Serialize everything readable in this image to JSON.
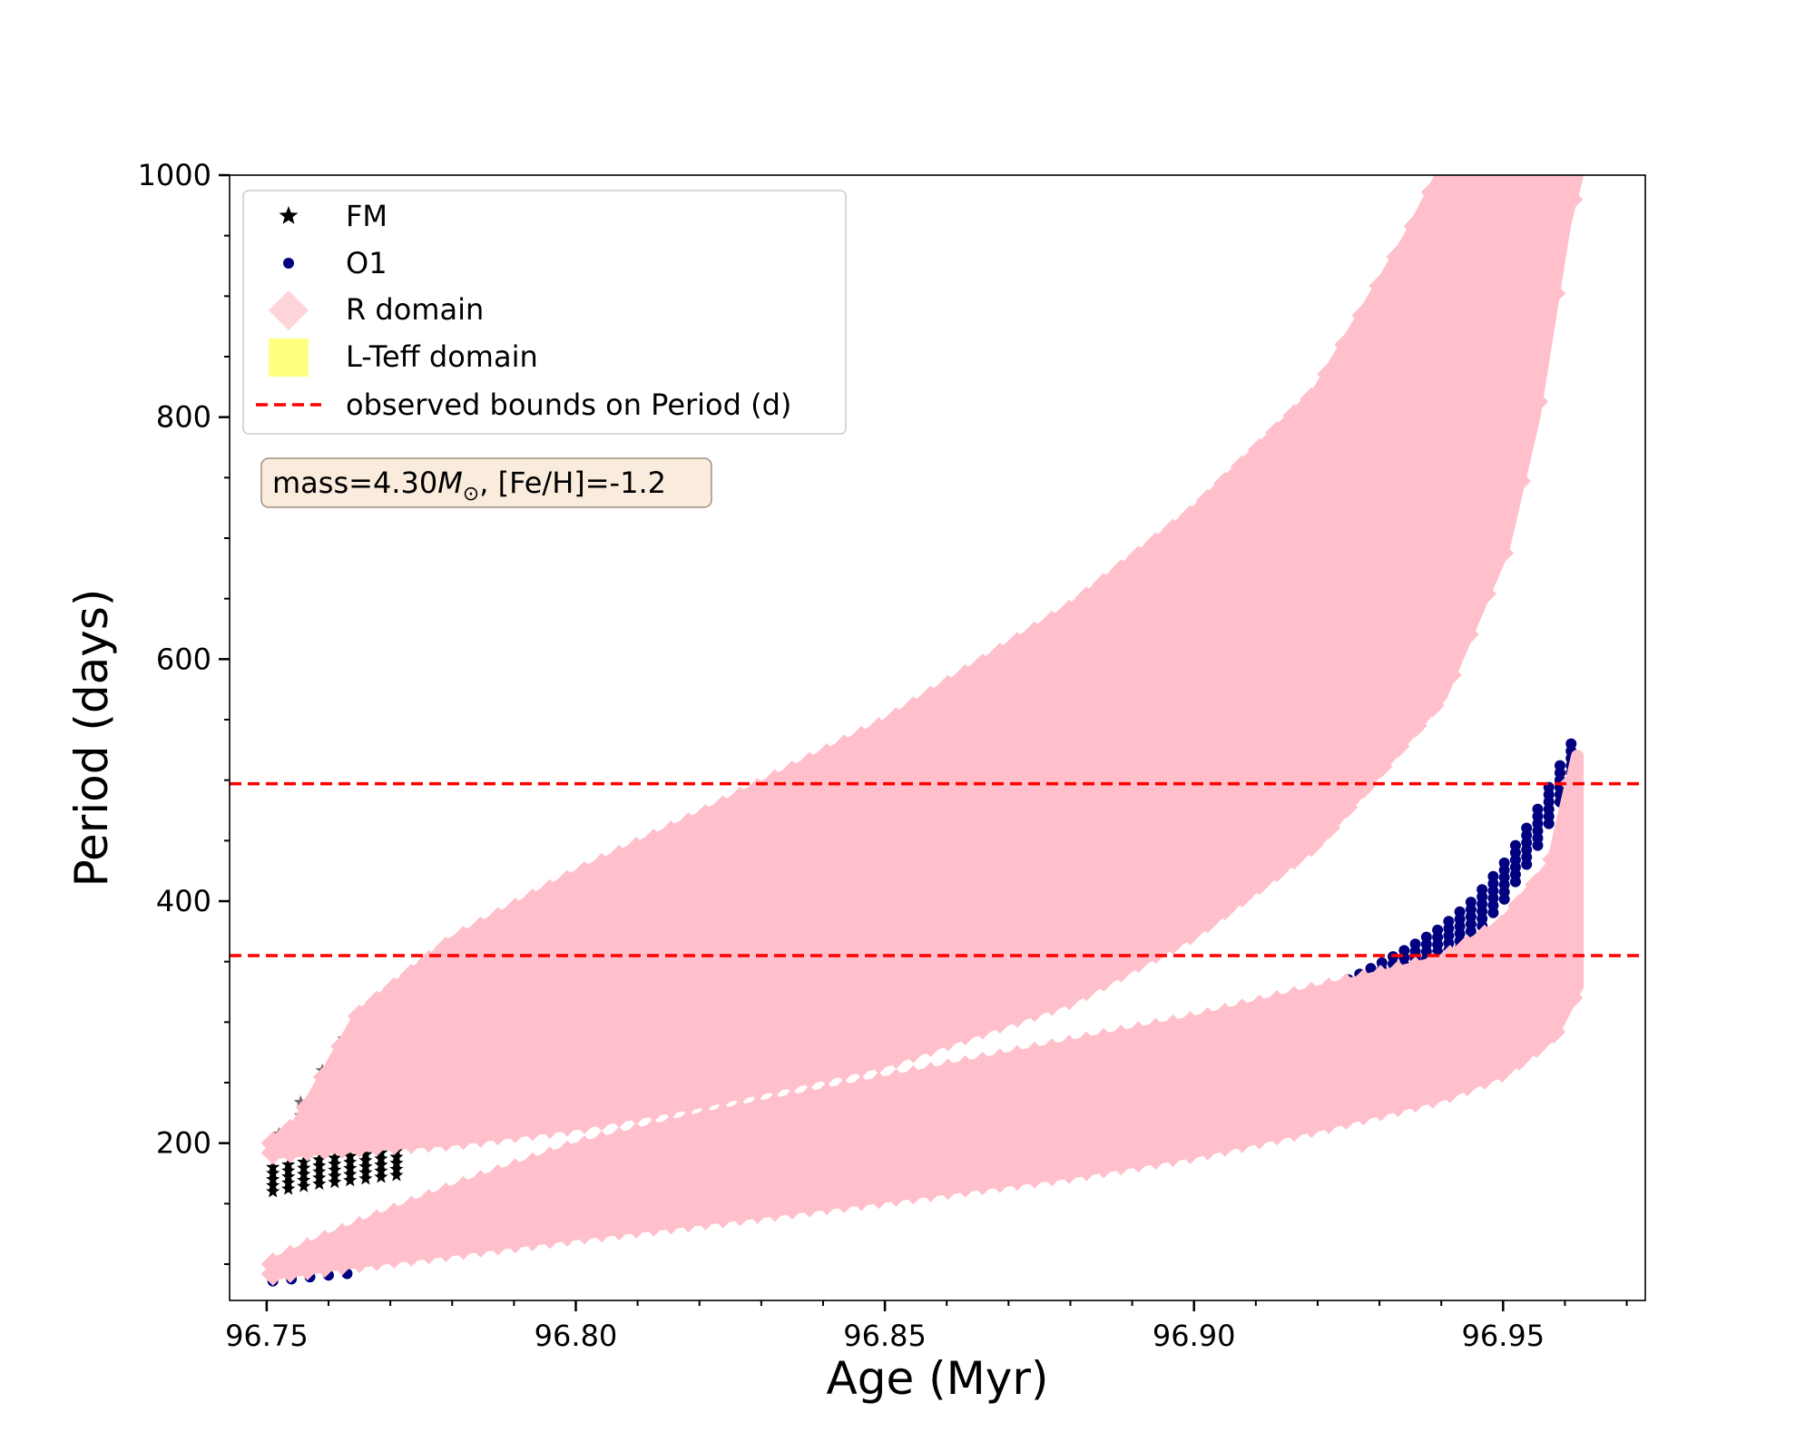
{
  "chart_data": {
    "type": "scatter",
    "title": "",
    "xlabel": "Age (Myr)",
    "ylabel": "Period (days)",
    "xlim": [
      96.744,
      96.973
    ],
    "ylim": [
      70,
      1000
    ],
    "xticks": [
      96.75,
      96.8,
      96.85,
      96.9,
      96.95
    ],
    "xtick_labels": [
      "96.75",
      "96.80",
      "96.85",
      "96.90",
      "96.95"
    ],
    "yticks": [
      200,
      400,
      600,
      800,
      1000
    ],
    "ytick_labels": [
      "200",
      "400",
      "600",
      "800",
      "1000"
    ],
    "xminor_step": 0.01,
    "yminor_step": 50,
    "grid": false,
    "legend_position": "top-left",
    "annotation": {
      "mass_prefix": "mass=4.30",
      "mass_symbol": "M",
      "mass_sub": "⊙",
      "rest": ", [Fe/H]=-1.2"
    },
    "observed_bounds": {
      "label": "observed bounds on Period (d)",
      "values": [
        355,
        497
      ],
      "color": "#ff0000"
    },
    "series": [
      {
        "name": "FM",
        "marker": "star",
        "color": "#000000",
        "tracks": [
          {
            "x": [
              96.751,
              96.758,
              96.765,
              96.772
            ],
            "y": [
              170,
              176,
              180,
              184
            ]
          },
          {
            "x": [
              96.751,
              96.765,
              96.78,
              96.8,
              96.82,
              96.85,
              96.88,
              96.9,
              96.92,
              96.94,
              96.95,
              96.953
            ],
            "y": [
              200,
              305,
              365,
              420,
              468,
              545,
              640,
              720,
              820,
              950,
              1000,
              1000
            ]
          }
        ]
      },
      {
        "name": "O1",
        "marker": "circle",
        "color": "#000080",
        "tracks": [
          {
            "x": [
              96.751,
              96.758,
              96.765
            ],
            "y": [
              86,
              90,
              93
            ]
          },
          {
            "x": [
              96.925,
              96.93,
              96.935,
              96.94,
              96.945,
              96.95,
              96.955,
              96.96,
              96.962
            ],
            "y": [
              335,
              348,
              362,
              378,
              400,
              430,
              470,
              520,
              540
            ]
          }
        ]
      },
      {
        "name": "R domain",
        "marker": "diamond",
        "color": "#ffc0cb",
        "bands": [
          {
            "upper": {
              "x": [
                96.751,
                96.755,
                96.765,
                96.78,
                96.8,
                96.82,
                96.85,
                96.88,
                96.9,
                96.92,
                96.935,
                96.94
              ],
              "y": [
                200,
                215,
                305,
                365,
                420,
                468,
                545,
                640,
                720,
                820,
                950,
                1000
              ]
            },
            "lower": {
              "x": [
                96.751,
                96.76,
                96.78,
                96.8,
                96.82,
                96.85,
                96.88,
                96.9,
                96.92,
                96.94,
                96.95,
                96.955,
                96.96,
                96.962
              ],
              "y": [
                192,
                196,
                203,
                216,
                234,
                268,
                320,
                375,
                450,
                570,
                690,
                800,
                960,
                1000
              ]
            }
          },
          {
            "upper": {
              "x": [
                96.751,
                96.76,
                96.78,
                96.8,
                96.82,
                96.85,
                96.88,
                96.9,
                96.92,
                96.94,
                96.95,
                96.958,
                96.962
              ],
              "y": [
                100,
                120,
                160,
                195,
                220,
                250,
                280,
                300,
                325,
                350,
                380,
                430,
                520
              ]
            },
            "lower": {
              "x": [
                96.751,
                96.76,
                96.78,
                96.8,
                96.82,
                96.85,
                96.88,
                96.9,
                96.92,
                96.94,
                96.95,
                96.958,
                96.962
              ],
              "y": [
                92,
                99,
                112,
                125,
                137,
                156,
                176,
                193,
                215,
                240,
                260,
                290,
                330
              ]
            }
          }
        ]
      },
      {
        "name": "L-Teff domain",
        "marker": "square",
        "color": "#ffff80"
      }
    ]
  }
}
